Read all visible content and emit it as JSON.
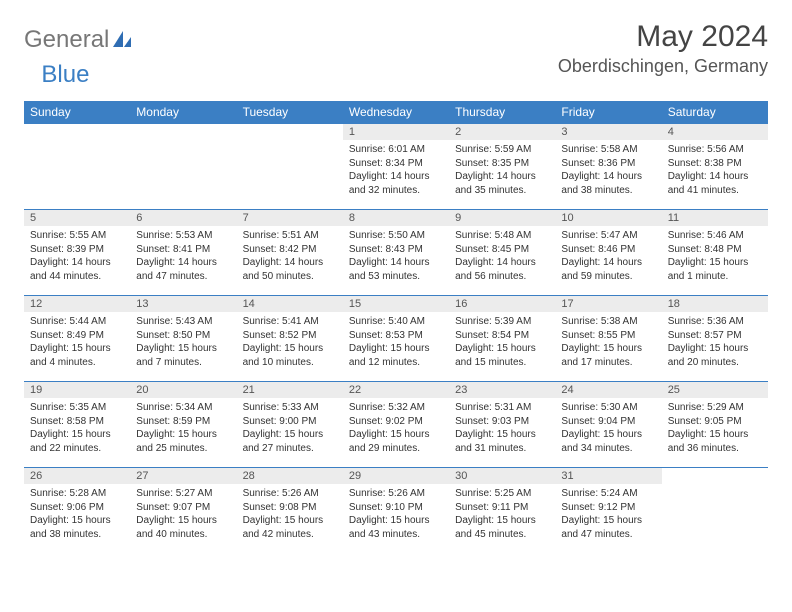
{
  "brand": {
    "part1": "General",
    "part2": "Blue"
  },
  "title": "May 2024",
  "location": "Oberdischingen, Germany",
  "header_bg": "#3b7fc4",
  "daynum_bg": "#ececec",
  "weekdays": [
    "Sunday",
    "Monday",
    "Tuesday",
    "Wednesday",
    "Thursday",
    "Friday",
    "Saturday"
  ],
  "weeks": [
    [
      {
        "day": "",
        "sunrise": "",
        "sunset": "",
        "daylight": ""
      },
      {
        "day": "",
        "sunrise": "",
        "sunset": "",
        "daylight": ""
      },
      {
        "day": "",
        "sunrise": "",
        "sunset": "",
        "daylight": ""
      },
      {
        "day": "1",
        "sunrise": "Sunrise: 6:01 AM",
        "sunset": "Sunset: 8:34 PM",
        "daylight": "Daylight: 14 hours and 32 minutes."
      },
      {
        "day": "2",
        "sunrise": "Sunrise: 5:59 AM",
        "sunset": "Sunset: 8:35 PM",
        "daylight": "Daylight: 14 hours and 35 minutes."
      },
      {
        "day": "3",
        "sunrise": "Sunrise: 5:58 AM",
        "sunset": "Sunset: 8:36 PM",
        "daylight": "Daylight: 14 hours and 38 minutes."
      },
      {
        "day": "4",
        "sunrise": "Sunrise: 5:56 AM",
        "sunset": "Sunset: 8:38 PM",
        "daylight": "Daylight: 14 hours and 41 minutes."
      }
    ],
    [
      {
        "day": "5",
        "sunrise": "Sunrise: 5:55 AM",
        "sunset": "Sunset: 8:39 PM",
        "daylight": "Daylight: 14 hours and 44 minutes."
      },
      {
        "day": "6",
        "sunrise": "Sunrise: 5:53 AM",
        "sunset": "Sunset: 8:41 PM",
        "daylight": "Daylight: 14 hours and 47 minutes."
      },
      {
        "day": "7",
        "sunrise": "Sunrise: 5:51 AM",
        "sunset": "Sunset: 8:42 PM",
        "daylight": "Daylight: 14 hours and 50 minutes."
      },
      {
        "day": "8",
        "sunrise": "Sunrise: 5:50 AM",
        "sunset": "Sunset: 8:43 PM",
        "daylight": "Daylight: 14 hours and 53 minutes."
      },
      {
        "day": "9",
        "sunrise": "Sunrise: 5:48 AM",
        "sunset": "Sunset: 8:45 PM",
        "daylight": "Daylight: 14 hours and 56 minutes."
      },
      {
        "day": "10",
        "sunrise": "Sunrise: 5:47 AM",
        "sunset": "Sunset: 8:46 PM",
        "daylight": "Daylight: 14 hours and 59 minutes."
      },
      {
        "day": "11",
        "sunrise": "Sunrise: 5:46 AM",
        "sunset": "Sunset: 8:48 PM",
        "daylight": "Daylight: 15 hours and 1 minute."
      }
    ],
    [
      {
        "day": "12",
        "sunrise": "Sunrise: 5:44 AM",
        "sunset": "Sunset: 8:49 PM",
        "daylight": "Daylight: 15 hours and 4 minutes."
      },
      {
        "day": "13",
        "sunrise": "Sunrise: 5:43 AM",
        "sunset": "Sunset: 8:50 PM",
        "daylight": "Daylight: 15 hours and 7 minutes."
      },
      {
        "day": "14",
        "sunrise": "Sunrise: 5:41 AM",
        "sunset": "Sunset: 8:52 PM",
        "daylight": "Daylight: 15 hours and 10 minutes."
      },
      {
        "day": "15",
        "sunrise": "Sunrise: 5:40 AM",
        "sunset": "Sunset: 8:53 PM",
        "daylight": "Daylight: 15 hours and 12 minutes."
      },
      {
        "day": "16",
        "sunrise": "Sunrise: 5:39 AM",
        "sunset": "Sunset: 8:54 PM",
        "daylight": "Daylight: 15 hours and 15 minutes."
      },
      {
        "day": "17",
        "sunrise": "Sunrise: 5:38 AM",
        "sunset": "Sunset: 8:55 PM",
        "daylight": "Daylight: 15 hours and 17 minutes."
      },
      {
        "day": "18",
        "sunrise": "Sunrise: 5:36 AM",
        "sunset": "Sunset: 8:57 PM",
        "daylight": "Daylight: 15 hours and 20 minutes."
      }
    ],
    [
      {
        "day": "19",
        "sunrise": "Sunrise: 5:35 AM",
        "sunset": "Sunset: 8:58 PM",
        "daylight": "Daylight: 15 hours and 22 minutes."
      },
      {
        "day": "20",
        "sunrise": "Sunrise: 5:34 AM",
        "sunset": "Sunset: 8:59 PM",
        "daylight": "Daylight: 15 hours and 25 minutes."
      },
      {
        "day": "21",
        "sunrise": "Sunrise: 5:33 AM",
        "sunset": "Sunset: 9:00 PM",
        "daylight": "Daylight: 15 hours and 27 minutes."
      },
      {
        "day": "22",
        "sunrise": "Sunrise: 5:32 AM",
        "sunset": "Sunset: 9:02 PM",
        "daylight": "Daylight: 15 hours and 29 minutes."
      },
      {
        "day": "23",
        "sunrise": "Sunrise: 5:31 AM",
        "sunset": "Sunset: 9:03 PM",
        "daylight": "Daylight: 15 hours and 31 minutes."
      },
      {
        "day": "24",
        "sunrise": "Sunrise: 5:30 AM",
        "sunset": "Sunset: 9:04 PM",
        "daylight": "Daylight: 15 hours and 34 minutes."
      },
      {
        "day": "25",
        "sunrise": "Sunrise: 5:29 AM",
        "sunset": "Sunset: 9:05 PM",
        "daylight": "Daylight: 15 hours and 36 minutes."
      }
    ],
    [
      {
        "day": "26",
        "sunrise": "Sunrise: 5:28 AM",
        "sunset": "Sunset: 9:06 PM",
        "daylight": "Daylight: 15 hours and 38 minutes."
      },
      {
        "day": "27",
        "sunrise": "Sunrise: 5:27 AM",
        "sunset": "Sunset: 9:07 PM",
        "daylight": "Daylight: 15 hours and 40 minutes."
      },
      {
        "day": "28",
        "sunrise": "Sunrise: 5:26 AM",
        "sunset": "Sunset: 9:08 PM",
        "daylight": "Daylight: 15 hours and 42 minutes."
      },
      {
        "day": "29",
        "sunrise": "Sunrise: 5:26 AM",
        "sunset": "Sunset: 9:10 PM",
        "daylight": "Daylight: 15 hours and 43 minutes."
      },
      {
        "day": "30",
        "sunrise": "Sunrise: 5:25 AM",
        "sunset": "Sunset: 9:11 PM",
        "daylight": "Daylight: 15 hours and 45 minutes."
      },
      {
        "day": "31",
        "sunrise": "Sunrise: 5:24 AM",
        "sunset": "Sunset: 9:12 PM",
        "daylight": "Daylight: 15 hours and 47 minutes."
      },
      {
        "day": "",
        "sunrise": "",
        "sunset": "",
        "daylight": ""
      }
    ]
  ]
}
